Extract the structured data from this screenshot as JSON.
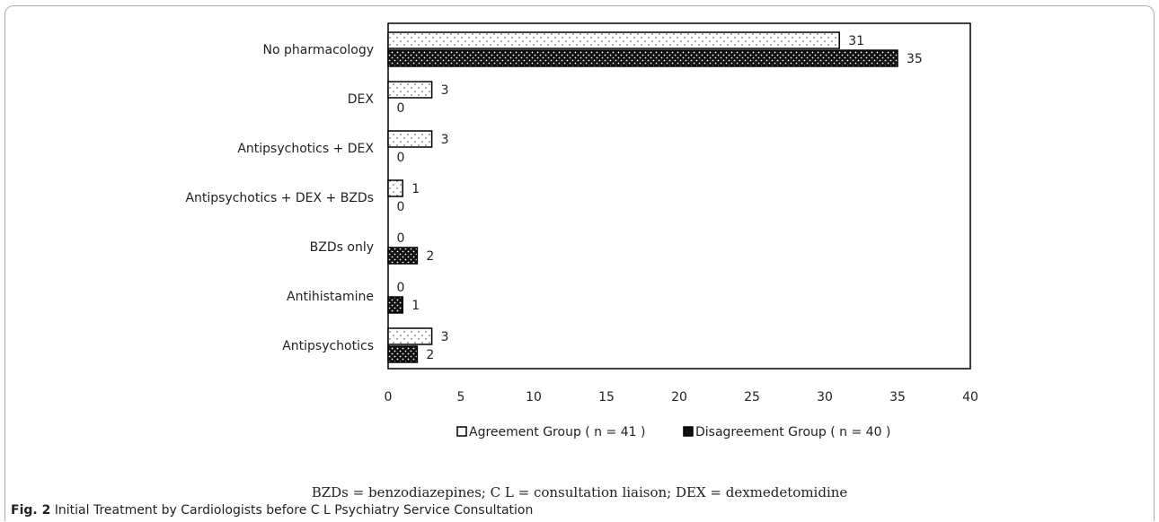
{
  "figure": {
    "caption_label": "Fig. 2",
    "caption_text": "Initial Treatment by Cardiologists before C L Psychiatry Service Consultation",
    "footnote": "BZDs = benzodiazepines; C L = consultation liaison; DEX = dexmedetomidine"
  },
  "chart_data": {
    "type": "bar",
    "orientation": "horizontal",
    "categories": [
      "No pharmacology",
      "DEX",
      "Antipsychotics + DEX",
      "Antipsychotics + DEX + BZDs",
      "BZDs only",
      "Antihistamine",
      "Antipsychotics"
    ],
    "series": [
      {
        "name": "Agreement Group ( n = 41 )",
        "values": [
          31,
          3,
          3,
          1,
          0,
          0,
          3
        ],
        "pattern": "light-dotted"
      },
      {
        "name": "Disagreement Group ( n = 40 )",
        "values": [
          35,
          0,
          0,
          0,
          2,
          1,
          2
        ],
        "pattern": "dark-dotted"
      }
    ],
    "xlim": [
      0,
      40
    ],
    "xticks": [
      0,
      5,
      10,
      15,
      20,
      25,
      30,
      35,
      40
    ],
    "grid": false,
    "legend_position": "bottom",
    "colors": {
      "dark": "#111111",
      "light": "#ffffff",
      "stroke": "#000000"
    }
  }
}
